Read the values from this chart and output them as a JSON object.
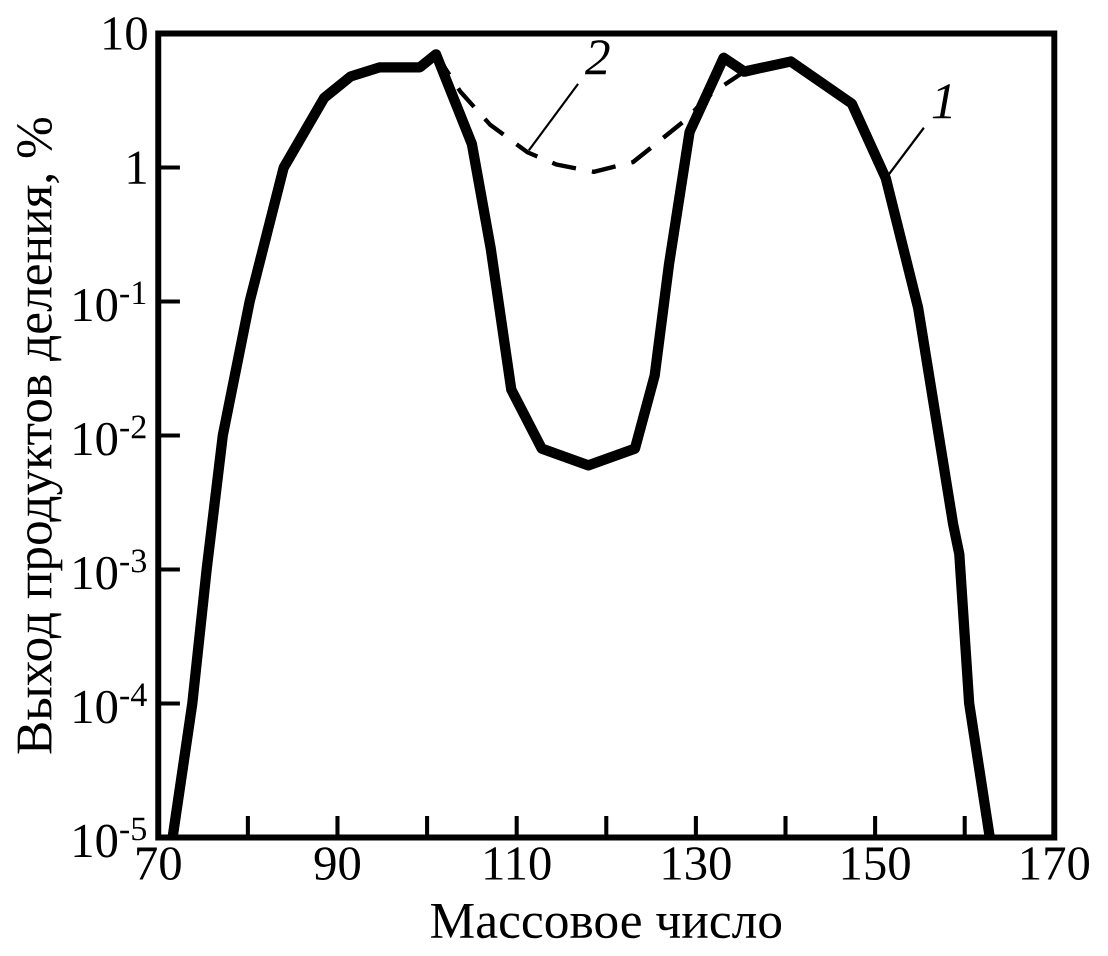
{
  "chart_data": {
    "type": "line",
    "xlabel": "Массовое число",
    "ylabel": "Выход продуктов деления, %",
    "log": "y",
    "xlim": [
      70,
      170
    ],
    "xticks": [
      70,
      90,
      110,
      130,
      150,
      170
    ],
    "ylim": [
      1e-05,
      10
    ],
    "yticks": [
      {
        "value": 1e-05,
        "label": "10$^{-5}$"
      },
      {
        "value": 0.0001,
        "label": "10$^{-4}$"
      },
      {
        "value": 0.001,
        "label": "10$^{-3}$"
      },
      {
        "value": 0.01,
        "label": "10$^{-2}$"
      },
      {
        "value": 0.1,
        "label": "10$^{-1}$"
      },
      1,
      10
    ],
    "legend": false,
    "grid": false,
    "marker": "none",
    "series": [
      {
        "name": "1",
        "color": "#000000",
        "line_style": "solid",
        "x": [
          71.6,
          73.8,
          75.4,
          77.2,
          80.2,
          84,
          88.5,
          91.5,
          94.7,
          99.2,
          101,
          105,
          107.1,
          109.4,
          112.8,
          118,
          123.2,
          125.4,
          127,
          129.3,
          133.1,
          135.4,
          140.6,
          147.4,
          151.2,
          154.8,
          158.7,
          159.4,
          160.5,
          162.8
        ],
        "values": [
          1e-05,
          0.0001,
          0.001,
          0.01,
          0.1,
          1,
          3.3,
          4.8,
          5.6,
          5.6,
          7,
          1.5,
          0.25,
          0.022,
          0.008,
          0.006,
          0.008,
          0.028,
          0.19,
          1.85,
          6.6,
          5.2,
          6.2,
          3,
          0.83,
          0.09,
          0.0022,
          0.0013,
          0.0001,
          1e-05
        ]
      },
      {
        "name": "2",
        "color": "#000000",
        "line_style": "dashed",
        "x": [
          101,
          103.7,
          107,
          111.2,
          114.5,
          118.6,
          123,
          128.6,
          131.8,
          135.4
        ],
        "values": [
          7,
          3.7,
          2.1,
          1.3,
          1.05,
          0.93,
          1.1,
          2.2,
          3.6,
          5.2
        ]
      }
    ]
  }
}
